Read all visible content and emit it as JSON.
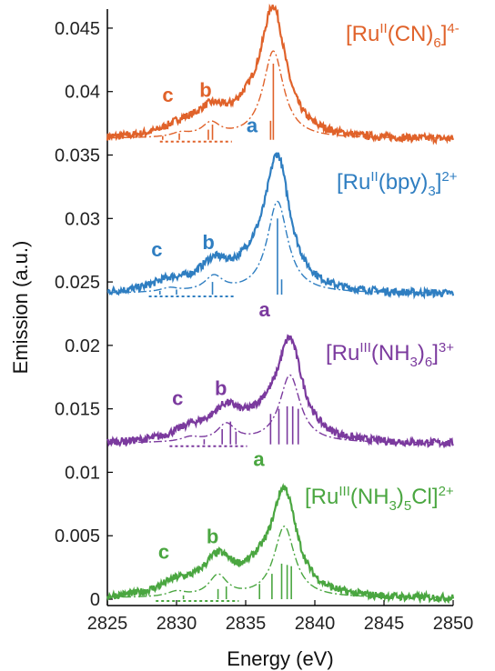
{
  "chart_data": {
    "type": "line",
    "xlabel": "Energy (eV)",
    "ylabel": "Emission (a.u.)",
    "xlim": [
      2825,
      2850
    ],
    "ylim": [
      -0.0005,
      0.0465
    ],
    "x_ticks": [
      "2825",
      "2830",
      "2835",
      "2840",
      "2845",
      "2850"
    ],
    "y_ticks": [
      "0",
      "0.005",
      "0.01",
      "0.015",
      "0.02",
      "0.025",
      "0.03",
      "0.035",
      "0.04",
      "0.045"
    ],
    "x_tick_values": [
      2825,
      2830,
      2835,
      2840,
      2845,
      2850
    ],
    "y_tick_values": [
      0,
      0.005,
      0.01,
      0.015,
      0.02,
      0.025,
      0.03,
      0.035,
      0.04,
      0.045
    ],
    "grid": false,
    "legend": "none",
    "series": [
      {
        "label_main": "[Ru",
        "label_sup1": "II",
        "label_mid": "(CN)",
        "label_sub": "6",
        "label_end": "]",
        "label_sup2": "4-",
        "color": "#e0622a",
        "offset": 0.0362,
        "peaks": [
          {
            "label": "a",
            "energy": 2837.0,
            "amplitude": 0.0098
          },
          {
            "label": "b",
            "energy": 2832.5,
            "amplitude": 0.0018
          },
          {
            "label": "c",
            "energy": 2830.3,
            "amplitude": 0.0008
          }
        ],
        "sticks": [
          [
            2837.0,
            0.006
          ],
          [
            2836.8,
            0.0015
          ],
          [
            2832.6,
            0.0012
          ],
          [
            2832.3,
            0.0008
          ],
          [
            2830.2,
            0.0005
          ],
          [
            2829.0,
            0.0003
          ]
        ]
      },
      {
        "label_main": "[Ru",
        "label_sup1": "II",
        "label_mid": "(bpy)",
        "label_sub": "3",
        "label_end": "]",
        "label_sup2": "2+",
        "color": "#2f7ec1",
        "offset": 0.024,
        "peaks": [
          {
            "label": "a",
            "energy": 2837.3,
            "amplitude": 0.0103
          },
          {
            "label": "b",
            "energy": 2832.7,
            "amplitude": 0.002
          },
          {
            "label": "c",
            "energy": 2829.5,
            "amplitude": 0.0008
          }
        ],
        "sticks": [
          [
            2837.3,
            0.006
          ],
          [
            2837.6,
            0.0012
          ],
          [
            2832.6,
            0.001
          ],
          [
            2830.0,
            0.0004
          ],
          [
            2828.8,
            0.0003
          ]
        ]
      },
      {
        "label_main": "[Ru",
        "label_sup1": "III",
        "label_mid": "(NH",
        "label_sub": "3",
        "label_end": ")",
        "label_sub2": "6",
        "label_end2": "]",
        "label_sup2": "3+",
        "color": "#7b3a9e",
        "offset": 0.0122,
        "peaks": [
          {
            "label": "a",
            "energy": 2838.2,
            "amplitude": 0.0076
          },
          {
            "label": "b",
            "energy": 2833.6,
            "amplitude": 0.0023
          },
          {
            "label": "c",
            "energy": 2831.0,
            "amplitude": 0.0009
          }
        ],
        "sticks": [
          [
            2837.4,
            0.0028
          ],
          [
            2838.0,
            0.003
          ],
          [
            2838.4,
            0.003
          ],
          [
            2838.8,
            0.0028
          ],
          [
            2836.8,
            0.0024
          ],
          [
            2833.9,
            0.0018
          ],
          [
            2833.3,
            0.0012
          ],
          [
            2834.3,
            0.001
          ],
          [
            2832.0,
            0.0004
          ]
        ]
      },
      {
        "label_main": "[Ru",
        "label_sup1": "III",
        "label_mid": "(NH",
        "label_sub": "3",
        "label_end": ")",
        "label_sub2": "5",
        "label_end2": "Cl]",
        "label_sup2": "2+",
        "color": "#4aa640",
        "offset": 0.0,
        "peaks": [
          {
            "label": "a",
            "energy": 2837.8,
            "amplitude": 0.008
          },
          {
            "label": "b",
            "energy": 2833.0,
            "amplitude": 0.0028
          },
          {
            "label": "c",
            "energy": 2830.0,
            "amplitude": 0.001
          }
        ],
        "sticks": [
          [
            2837.6,
            0.0028
          ],
          [
            2838.0,
            0.0027
          ],
          [
            2838.3,
            0.0026
          ],
          [
            2836.9,
            0.002
          ],
          [
            2836.0,
            0.0012
          ],
          [
            2833.6,
            0.001
          ],
          [
            2833.0,
            0.0008
          ],
          [
            2830.5,
            0.0003
          ]
        ]
      }
    ]
  }
}
